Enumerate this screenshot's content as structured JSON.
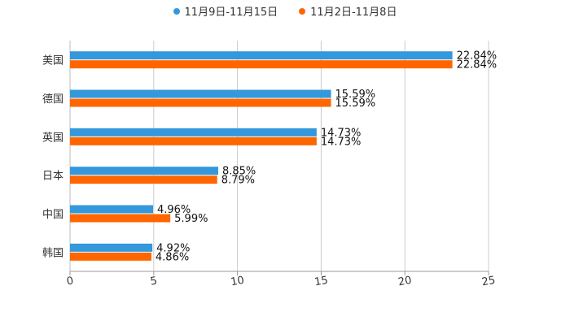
{
  "chart_data": {
    "type": "bar",
    "orientation": "horizontal",
    "categories": [
      "美国",
      "德国",
      "英国",
      "日本",
      "中国",
      "韩国"
    ],
    "series": [
      {
        "name": "11月9日-11月15日",
        "color": "#3498db",
        "values": [
          22.84,
          15.59,
          14.73,
          8.85,
          4.96,
          4.92
        ],
        "labels": [
          "22.84%",
          "15.59%",
          "14.73%",
          "8.85%",
          "4.96%",
          "4.92%"
        ]
      },
      {
        "name": "11月2日-11月8日",
        "color": "#ff6600",
        "values": [
          22.84,
          15.59,
          14.73,
          8.79,
          5.99,
          4.86
        ],
        "labels": [
          "22.84%",
          "15.59%",
          "14.73%",
          "8.79%",
          "5.99%",
          "4.86%"
        ]
      }
    ],
    "xlim": [
      0,
      25
    ],
    "xticks": [
      0,
      5,
      10,
      15,
      20,
      25
    ],
    "xtick_labels": [
      "0",
      "5",
      "10",
      "15",
      "20",
      "25"
    ],
    "grid": true,
    "legend_position": "top-center"
  }
}
